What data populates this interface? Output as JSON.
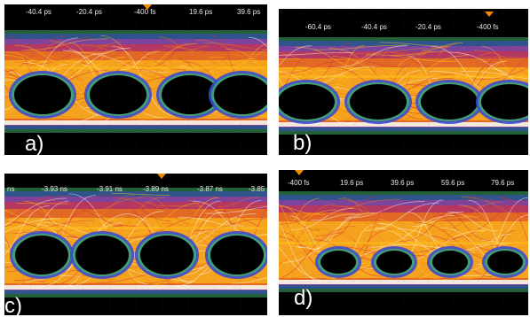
{
  "panels": [
    {
      "id": "a",
      "label": "a)",
      "ticks": [
        "-40.4 ps",
        "-20.4 ps",
        "-400 fs",
        "19.6 ps",
        "39.6 ps"
      ]
    },
    {
      "id": "b",
      "label": "b)",
      "ticks": [
        "-60.4 ps",
        "-40.4 ps",
        "-20.4 ps",
        "-400 fs"
      ]
    },
    {
      "id": "c",
      "label": "c)",
      "ticks": [
        "ns",
        "-3.93 ns",
        "-3.91 ns",
        "-3.89 ns",
        "-3.87 ns",
        "-3.85"
      ]
    },
    {
      "id": "d",
      "label": "d)",
      "ticks": [
        "-400 fs",
        "19.6 ps",
        "39.6 ps",
        "59.6 ps",
        "79.6 ps"
      ]
    }
  ],
  "colors": {
    "background": "#000000",
    "hot": "#fffbe6",
    "yellow": "#ffc21a",
    "orange": "#f07a12",
    "red": "#d8303a",
    "magenta": "#b03aa8",
    "blue": "#3a4ad0",
    "green": "#3fae6a",
    "marker": "#f08a00"
  }
}
